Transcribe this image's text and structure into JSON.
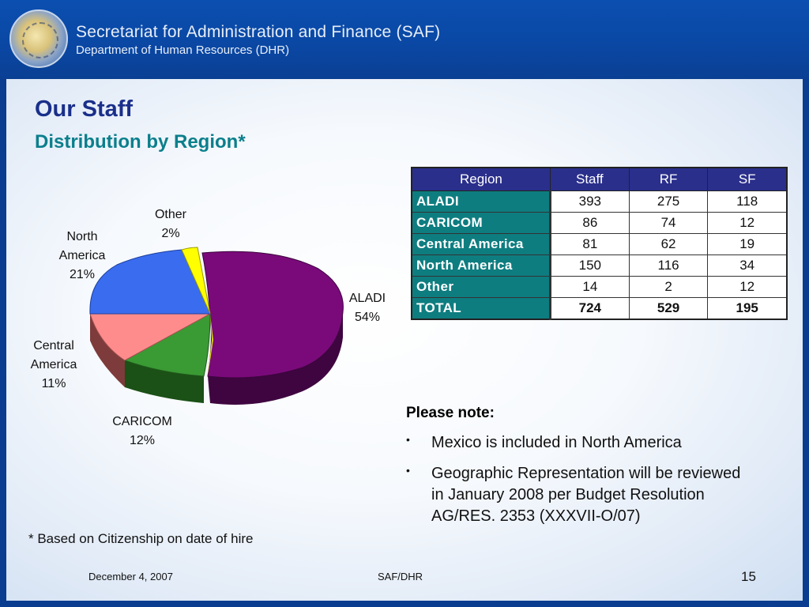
{
  "header": {
    "title": "Secretariat for Administration and Finance (SAF)",
    "subtitle": "Department of Human Resources (DHR)"
  },
  "slide": {
    "title": "Our Staff",
    "subtitle": "Distribution by Region*"
  },
  "table": {
    "headers": [
      "Region",
      "Staff",
      "RF",
      "SF"
    ],
    "rows": [
      [
        "ALADI",
        "393",
        "275",
        "118"
      ],
      [
        "CARICOM",
        "86",
        "74",
        "12"
      ],
      [
        "Central America",
        "81",
        "62",
        "19"
      ],
      [
        "North America",
        "150",
        "116",
        "34"
      ],
      [
        "Other",
        "14",
        "2",
        "12"
      ],
      [
        "TOTAL",
        "724",
        "529",
        "195"
      ]
    ]
  },
  "chart_data": {
    "type": "pie",
    "slices": [
      {
        "label": "ALADI",
        "percent_label": "54%",
        "value": 54,
        "color": "#7a0a7a"
      },
      {
        "label": "CARICOM",
        "percent_label": "12%",
        "value": 12,
        "color": "#3a9a34"
      },
      {
        "label": "Central America",
        "percent_label": "11%",
        "value": 11,
        "color": "#ff8c8c"
      },
      {
        "label": "North America",
        "percent_label": "21%",
        "value": 21,
        "color": "#3a6cf0"
      },
      {
        "label": "Other",
        "percent_label": "2%",
        "value": 2,
        "color": "#ffff00"
      }
    ],
    "labels": {
      "other": [
        "Other",
        "2%"
      ],
      "north_america": [
        "North",
        "America",
        "21%"
      ],
      "aladi": [
        "ALADI",
        "54%"
      ],
      "central_america": [
        "Central",
        "America",
        "11%"
      ],
      "caricom": [
        "CARICOM",
        "12%"
      ]
    }
  },
  "note": {
    "title": "Please note:",
    "bullet": "•",
    "items": [
      "Mexico is included in North America",
      "Geographic Representation will be reviewed in January 2008 per Budget Resolution AG/RES. 2353 (XXXVII-O/07)"
    ]
  },
  "footnote": "* Based on Citizenship on date of hire",
  "footer": {
    "date": "December 4, 2007",
    "org": "SAF/DHR",
    "page": "15"
  }
}
